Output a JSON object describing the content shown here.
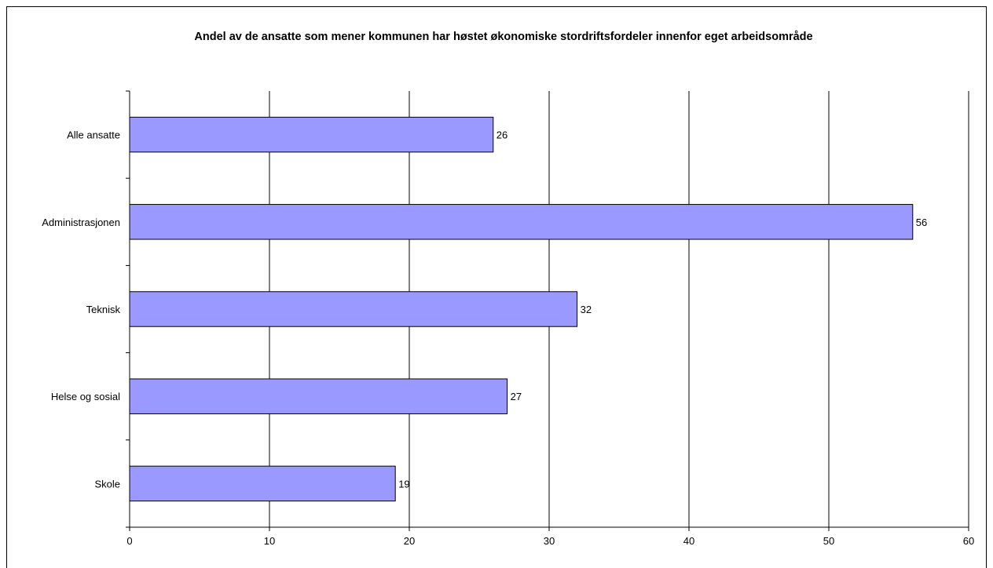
{
  "chart_data": {
    "type": "bar",
    "orientation": "horizontal",
    "title": "Andel av de ansatte som mener kommunen har høstet økonomiske stordriftsfordeler innenfor eget arbeidsområde",
    "categories": [
      "Alle ansatte",
      "Administrasjonen",
      "Teknisk",
      "Helse og sosial",
      "Skole"
    ],
    "values": [
      26,
      56,
      32,
      27,
      19
    ],
    "xlim": [
      0,
      60
    ],
    "xticks": [
      0,
      10,
      20,
      30,
      40,
      50,
      60
    ],
    "grid": true,
    "legend": "none",
    "bar_color": "#9999ff",
    "bar_edge_color": "#000000"
  }
}
